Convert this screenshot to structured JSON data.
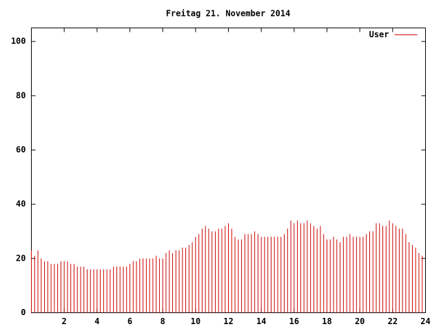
{
  "chart_data": {
    "type": "impulse",
    "title": "Freitag 21. November 2014",
    "series": [
      {
        "name": "User",
        "color": "#cc0000",
        "x": [
          0,
          0.2,
          0.4,
          0.6,
          0.8,
          1,
          1.2,
          1.4,
          1.6,
          1.8,
          2,
          2.2,
          2.4,
          2.6,
          2.8,
          3,
          3.2,
          3.4,
          3.6,
          3.8,
          4,
          4.2,
          4.4,
          4.6,
          4.8,
          5,
          5.2,
          5.4,
          5.6,
          5.8,
          6,
          6.2,
          6.4,
          6.6,
          6.8,
          7,
          7.2,
          7.4,
          7.6,
          7.8,
          8,
          8.2,
          8.4,
          8.6,
          8.8,
          9,
          9.2,
          9.4,
          9.6,
          9.8,
          10,
          10.2,
          10.4,
          10.6,
          10.8,
          11,
          11.2,
          11.4,
          11.6,
          11.8,
          12,
          12.2,
          12.4,
          12.6,
          12.8,
          13,
          13.2,
          13.4,
          13.6,
          13.8,
          14,
          14.2,
          14.4,
          14.6,
          14.8,
          15,
          15.2,
          15.4,
          15.6,
          15.8,
          16,
          16.2,
          16.4,
          16.6,
          16.8,
          17,
          17.2,
          17.4,
          17.6,
          17.8,
          18,
          18.2,
          18.4,
          18.6,
          18.8,
          19,
          19.2,
          19.4,
          19.6,
          19.8,
          20,
          20.2,
          20.4,
          20.6,
          20.8,
          21,
          21.2,
          21.4,
          21.6,
          21.8,
          22,
          22.2,
          22.4,
          22.6,
          22.8,
          23,
          23.2,
          23.4,
          23.6,
          23.8
        ],
        "values": [
          23,
          21,
          23,
          20,
          19,
          19,
          18,
          18,
          18,
          19,
          19,
          19,
          18,
          18,
          17,
          17,
          17,
          16,
          16,
          16,
          16,
          16,
          16,
          16,
          16,
          17,
          17,
          17,
          17,
          17,
          18,
          19,
          19,
          20,
          20,
          20,
          20,
          20,
          21,
          20,
          20,
          22,
          23,
          22,
          23,
          23,
          24,
          24,
          25,
          26,
          28,
          29,
          31,
          32,
          31,
          30,
          30,
          31,
          31,
          32,
          33,
          31,
          28,
          27,
          27,
          29,
          29,
          29,
          30,
          29,
          28,
          28,
          28,
          28,
          28,
          28,
          28,
          29,
          31,
          34,
          33,
          34,
          33,
          33,
          34,
          33,
          32,
          31,
          32,
          29,
          27,
          27,
          28,
          27,
          26,
          28,
          28,
          29,
          28,
          28,
          28,
          28,
          29,
          30,
          30,
          33,
          33,
          32,
          32,
          34,
          33,
          32,
          31,
          31,
          29,
          26,
          25,
          24,
          22,
          21
        ]
      }
    ],
    "xlim": [
      0,
      24
    ],
    "xticks": [
      2,
      4,
      6,
      8,
      10,
      12,
      14,
      16,
      18,
      20,
      22,
      24
    ],
    "ylim": [
      0,
      105
    ],
    "yticks": [
      0,
      20,
      40,
      60,
      80,
      100
    ],
    "grid": false,
    "legend": "top-right"
  }
}
